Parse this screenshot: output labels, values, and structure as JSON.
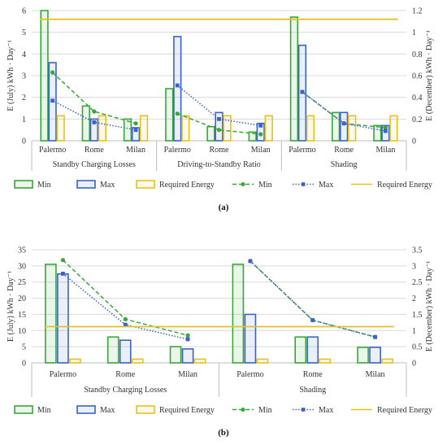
{
  "colors": {
    "min": "#3aa63a",
    "max": "#3a63c9",
    "required": "#e8c21b",
    "grid": "#d9d9d9",
    "axis": "#bfbfbf"
  },
  "legend": {
    "bar_min": "Min",
    "bar_max": "Max",
    "bar_required": "Required Energy",
    "line_min": "Min",
    "line_max": "Max",
    "line_required": "Required Energy"
  },
  "chart_data": [
    {
      "type": "bar",
      "panel_label": "(a)",
      "ylabel_left": "E (July) kWh · Day⁻¹",
      "ylabel_right": "E (December) kWh · Day⁻¹",
      "ylim_left": [
        0,
        6
      ],
      "yticks_left": [
        "0",
        "1",
        "2",
        "3",
        "4",
        "5",
        "6"
      ],
      "ylim_right": [
        0,
        1.2
      ],
      "yticks_right": [
        "0",
        "0.2",
        "0.4",
        "0.6",
        "0.8",
        "1",
        "1.2"
      ],
      "groups": [
        "Standby Charging Losses",
        "Driving-to-Standby Ratio",
        "Shading"
      ],
      "categories": [
        "Palermo",
        "Rome",
        "Milan",
        "Palermo",
        "Rome",
        "Milan",
        "Palermo",
        "Rome",
        "Milan"
      ],
      "bars": [
        {
          "name": "Min",
          "values": [
            6.0,
            1.6,
            1.0,
            2.4,
            0.65,
            0.4,
            5.7,
            1.3,
            0.7
          ]
        },
        {
          "name": "Max",
          "values": [
            3.6,
            1.0,
            0.6,
            4.8,
            1.3,
            0.8,
            4.4,
            1.3,
            0.7
          ]
        },
        {
          "name": "Required Energy",
          "values": [
            1.15,
            1.15,
            1.15,
            1.15,
            1.15,
            1.15,
            1.15,
            1.15,
            1.15
          ]
        }
      ],
      "lines": [
        {
          "name": "Min",
          "segments": [
            [
              0.63,
              0.27,
              0.16
            ],
            [
              0.25,
              0.1,
              0.06
            ],
            [
              0.45,
              0.16,
              0.12
            ]
          ]
        },
        {
          "name": "Max",
          "segments": [
            [
              0.37,
              0.17,
              0.1
            ],
            [
              0.51,
              0.2,
              0.14
            ],
            [
              0.45,
              0.16,
              0.09
            ]
          ]
        },
        {
          "name": "Required Energy",
          "value": 1.12
        }
      ]
    },
    {
      "type": "bar",
      "panel_label": "(b)",
      "ylabel_left": "E (July) kWh · Day⁻¹",
      "ylabel_right": "E (December) kWh · Day⁻¹",
      "ylim_left": [
        0,
        35
      ],
      "yticks_left": [
        "0",
        "5",
        "10",
        "15",
        "20",
        "25",
        "30",
        "35"
      ],
      "ylim_right": [
        0,
        3.5
      ],
      "yticks_right": [
        "0",
        "0.5",
        "1",
        "1.5",
        "2",
        "2.5",
        "3",
        "3.5"
      ],
      "groups": [
        "Standby Charging Losses",
        "Shading"
      ],
      "categories": [
        "Palermo",
        "Rome",
        "Milan",
        "Palermo",
        "Rome",
        "Milan"
      ],
      "bars": [
        {
          "name": "Min",
          "values": [
            30.5,
            8.0,
            5.0,
            30.5,
            8.0,
            4.8
          ]
        },
        {
          "name": "Max",
          "values": [
            27.5,
            7.0,
            4.3,
            15.0,
            8.0,
            4.8
          ]
        },
        {
          "name": "Required Energy",
          "values": [
            1.15,
            1.15,
            1.15,
            1.15,
            1.15,
            1.15
          ]
        }
      ],
      "lines": [
        {
          "name": "Min",
          "segments": [
            [
              3.18,
              1.35,
              0.85
            ],
            [
              3.15,
              1.32,
              0.8
            ]
          ]
        },
        {
          "name": "Max",
          "segments": [
            [
              2.76,
              1.18,
              0.73
            ],
            [
              3.15,
              1.32,
              0.8
            ]
          ]
        },
        {
          "name": "Required Energy",
          "value": 1.12
        }
      ]
    }
  ]
}
